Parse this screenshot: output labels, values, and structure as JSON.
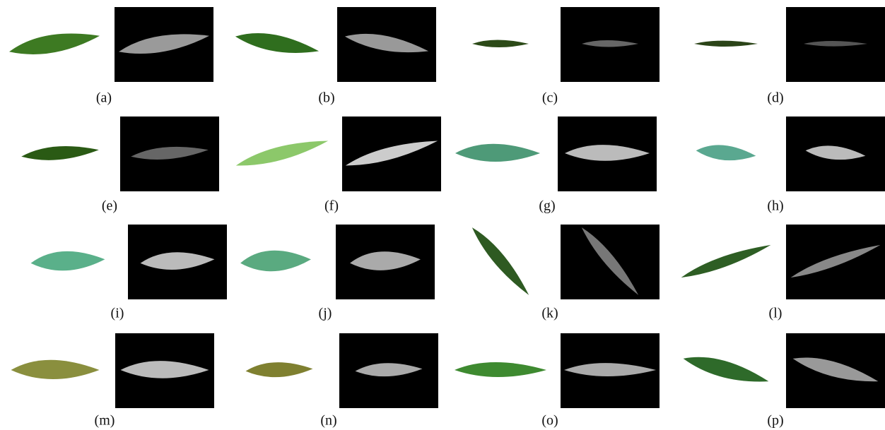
{
  "panels": [
    {
      "label": "(a)"
    },
    {
      "label": "(b)"
    },
    {
      "label": "(c)"
    },
    {
      "label": "(d)"
    },
    {
      "label": "(e)"
    },
    {
      "label": "(f)"
    },
    {
      "label": "(g)"
    },
    {
      "label": "(h)"
    },
    {
      "label": "(i)"
    },
    {
      "label": "(j)"
    },
    {
      "label": "(k)"
    },
    {
      "label": "(l)"
    },
    {
      "label": "(m)"
    },
    {
      "label": "(n)"
    },
    {
      "label": "(o)"
    },
    {
      "label": "(p)"
    }
  ]
}
